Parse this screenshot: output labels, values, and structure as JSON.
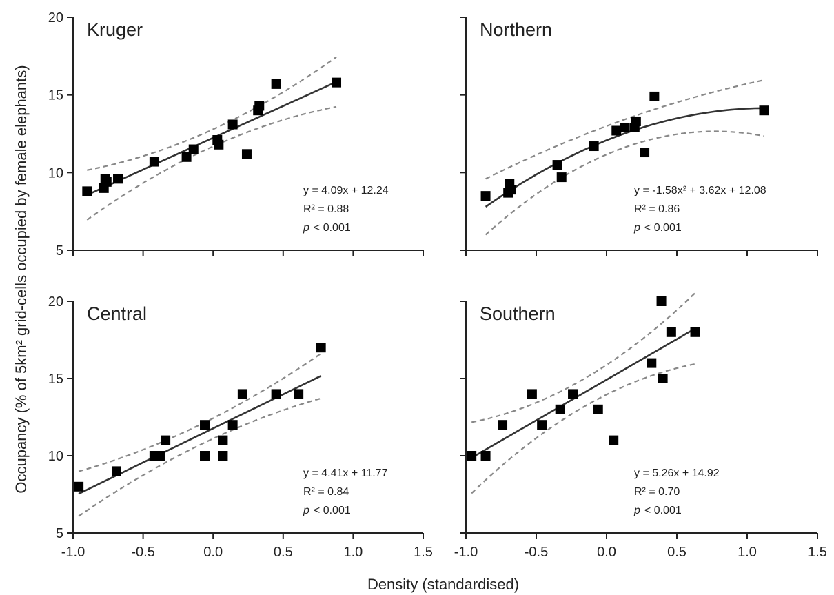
{
  "figure": {
    "ylabel": "Occupancy (% of 5km² grid-cells occupied by female elephants)",
    "xlabel": "Density (standardised)",
    "colors": {
      "points": "#000000",
      "fit": "#333333",
      "ci": "#888888",
      "axis": "#222222"
    }
  },
  "chart_data": [
    {
      "type": "scatter",
      "title": "Kruger",
      "xlim": [
        -1.0,
        1.5
      ],
      "ylim": [
        5,
        20
      ],
      "xticks": [
        "-1.0",
        "-0.5",
        "0.0",
        "0.5",
        "1.0",
        "1.5"
      ],
      "yticks": [
        "5",
        "10",
        "15",
        "20"
      ],
      "show_xticklabels": false,
      "show_yticklabels": true,
      "points": [
        [
          -0.9,
          8.8
        ],
        [
          -0.78,
          9.0
        ],
        [
          -0.77,
          9.6
        ],
        [
          -0.76,
          9.4
        ],
        [
          -0.68,
          9.6
        ],
        [
          -0.42,
          10.7
        ],
        [
          -0.19,
          11.0
        ],
        [
          -0.14,
          11.5
        ],
        [
          0.03,
          12.1
        ],
        [
          0.04,
          11.8
        ],
        [
          0.14,
          13.1
        ],
        [
          0.24,
          11.2
        ],
        [
          0.32,
          14.0
        ],
        [
          0.33,
          14.3
        ],
        [
          0.45,
          15.7
        ],
        [
          0.88,
          15.8
        ]
      ],
      "fit": {
        "kind": "linear",
        "a": 4.09,
        "b": 12.24,
        "x_range": [
          -0.9,
          0.88
        ],
        "ci_half_width": [
          0.55,
          1.6
        ]
      },
      "stats": {
        "equation": "y = 4.09x + 12.24",
        "r2": "R² = 0.88",
        "p_label": "p",
        "p_value": "< 0.001"
      }
    },
    {
      "type": "scatter",
      "title": "Northern",
      "xlim": [
        -1.0,
        1.5
      ],
      "ylim": [
        5,
        20
      ],
      "xticks": [
        "-1.0",
        "-0.5",
        "0.0",
        "0.5",
        "1.0",
        "1.5"
      ],
      "yticks": [
        "5",
        "10",
        "15",
        "20"
      ],
      "show_xticklabels": false,
      "show_yticklabels": false,
      "points": [
        [
          -0.86,
          8.5
        ],
        [
          -0.7,
          8.7
        ],
        [
          -0.69,
          9.3
        ],
        [
          -0.68,
          8.9
        ],
        [
          -0.35,
          10.5
        ],
        [
          -0.32,
          9.7
        ],
        [
          -0.09,
          11.7
        ],
        [
          0.07,
          12.7
        ],
        [
          0.13,
          12.9
        ],
        [
          0.2,
          12.9
        ],
        [
          0.21,
          13.3
        ],
        [
          0.27,
          11.3
        ],
        [
          0.34,
          14.9
        ],
        [
          1.12,
          14.0
        ]
      ],
      "fit": {
        "kind": "quadratic",
        "a2": -1.58,
        "a1": 3.62,
        "b": 12.08,
        "x_range": [
          -0.86,
          1.12
        ],
        "ci_half_width": [
          0.9,
          1.8
        ]
      },
      "stats": {
        "equation": "y = -1.58x² + 3.62x + 12.08",
        "r2": "R² = 0.86",
        "p_label": "p",
        "p_value": "< 0.001"
      }
    },
    {
      "type": "scatter",
      "title": "Central",
      "xlim": [
        -1.0,
        1.5
      ],
      "ylim": [
        5,
        20
      ],
      "xticks": [
        "-1.0",
        "-0.5",
        "0.0",
        "0.5",
        "1.0",
        "1.5"
      ],
      "yticks": [
        "5",
        "10",
        "15",
        "20"
      ],
      "show_xticklabels": true,
      "show_yticklabels": true,
      "points": [
        [
          -0.96,
          8.0
        ],
        [
          -0.69,
          9.0
        ],
        [
          -0.42,
          10.0
        ],
        [
          -0.38,
          10.0
        ],
        [
          -0.34,
          11.0
        ],
        [
          -0.06,
          12.0
        ],
        [
          -0.06,
          10.0
        ],
        [
          0.07,
          11.0
        ],
        [
          0.07,
          10.0
        ],
        [
          0.14,
          12.0
        ],
        [
          0.21,
          14.0
        ],
        [
          0.45,
          14.0
        ],
        [
          0.61,
          14.0
        ],
        [
          0.77,
          17.0
        ]
      ],
      "fit": {
        "kind": "linear",
        "a": 4.41,
        "b": 11.77,
        "x_range": [
          -0.96,
          0.77
        ],
        "ci_half_width": [
          0.65,
          1.45
        ]
      },
      "stats": {
        "equation": "y = 4.41x + 11.77",
        "r2": "R² = 0.84",
        "p_label": "p",
        "p_value": "< 0.001"
      }
    },
    {
      "type": "scatter",
      "title": "Southern",
      "xlim": [
        -1.0,
        1.5
      ],
      "ylim": [
        5,
        20
      ],
      "xticks": [
        "-1.0",
        "-0.5",
        "0.0",
        "0.5",
        "1.0",
        "1.5"
      ],
      "yticks": [
        "5",
        "10",
        "15",
        "20"
      ],
      "show_xticklabels": true,
      "show_yticklabels": false,
      "points": [
        [
          -0.96,
          10.0
        ],
        [
          -0.86,
          10.0
        ],
        [
          -0.74,
          12.0
        ],
        [
          -0.53,
          14.0
        ],
        [
          -0.46,
          12.0
        ],
        [
          -0.33,
          13.0
        ],
        [
          -0.24,
          14.0
        ],
        [
          -0.06,
          13.0
        ],
        [
          0.05,
          11.0
        ],
        [
          0.32,
          16.0
        ],
        [
          0.39,
          20.0
        ],
        [
          0.4,
          15.0
        ],
        [
          0.46,
          18.0
        ],
        [
          0.63,
          18.0
        ]
      ],
      "fit": {
        "kind": "linear",
        "a": 5.26,
        "b": 14.92,
        "x_range": [
          -0.96,
          0.63
        ],
        "ci_half_width": [
          0.9,
          2.3
        ]
      },
      "stats": {
        "equation": "y = 5.26x + 14.92",
        "r2": "R² = 0.70",
        "p_label": "p",
        "p_value": "< 0.001"
      }
    }
  ]
}
